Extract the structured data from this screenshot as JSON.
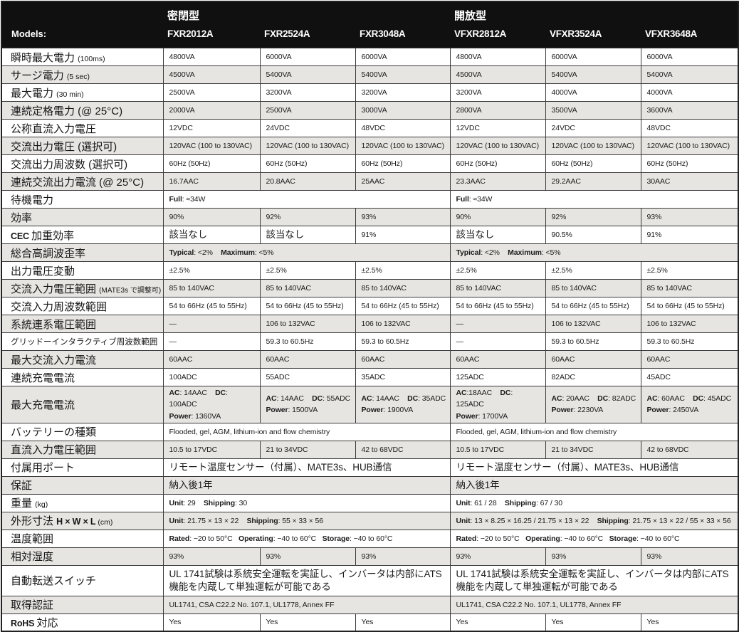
{
  "table": {
    "models_label": "Models:",
    "group_headers": [
      "密閉型",
      "開放型"
    ],
    "models": [
      "FXR2012A",
      "FXR2524A",
      "FXR3048A",
      "VFXR2812A",
      "VFXR3524A",
      "VFXR3648A"
    ],
    "rows": [
      {
        "label": [
          [
            "jp",
            "瞬時最大電力 "
          ],
          [
            "lt",
            "(100ms)"
          ]
        ],
        "cells": [
          "4800VA",
          "6000VA",
          "6000VA",
          "4800VA",
          "6000VA",
          "6000VA"
        ]
      },
      {
        "label": [
          [
            "jp",
            "サージ電力 "
          ],
          [
            "lt",
            "(5 sec)"
          ]
        ],
        "cells": [
          "4500VA",
          "5400VA",
          "5400VA",
          "4500VA",
          "5400VA",
          "5400VA"
        ]
      },
      {
        "label": [
          [
            "jp",
            "最大電力 "
          ],
          [
            "lt",
            "(30 min)"
          ]
        ],
        "cells": [
          "2500VA",
          "3200VA",
          "3200VA",
          "3200VA",
          "4000VA",
          "4000VA"
        ]
      },
      {
        "label": [
          [
            "jp",
            "連続定格電力 (@ 25°C)"
          ]
        ],
        "cells": [
          "2000VA",
          "2500VA",
          "3000VA",
          "2800VA",
          "3500VA",
          "3600VA"
        ]
      },
      {
        "label": [
          [
            "jp",
            "公称直流入力電圧"
          ]
        ],
        "cells": [
          "12VDC",
          "24VDC",
          "48VDC",
          "12VDC",
          "24VDC",
          "48VDC"
        ]
      },
      {
        "label": [
          [
            "jp",
            "交流出力電圧 (選択可)"
          ]
        ],
        "cells": [
          "120VAC (100 to 130VAC)",
          "120VAC (100 to 130VAC)",
          "120VAC (100 to 130VAC)",
          "120VAC (100 to 130VAC)",
          "120VAC (100 to 130VAC)",
          "120VAC (100 to 130VAC)"
        ]
      },
      {
        "label": [
          [
            "jp",
            "交流出力周波数 (選択可)"
          ]
        ],
        "cells": [
          "60Hz (50Hz)",
          "60Hz (50Hz)",
          "60Hz (50Hz)",
          "60Hz (50Hz)",
          "60Hz (50Hz)",
          "60Hz (50Hz)"
        ]
      },
      {
        "label": [
          [
            "jp",
            "連続交流出力電流 (@ 25°C)"
          ]
        ],
        "cells": [
          "16.7AAC",
          "20.8AAC",
          "25AAC",
          "23.3AAC",
          "29.2AAC",
          "30AAC"
        ]
      },
      {
        "label": [
          [
            "jp",
            "待機電力"
          ]
        ],
        "groups": [
          "**Full**: ≈34W",
          "**Full**: ≈34W"
        ]
      },
      {
        "label": [
          [
            "jp",
            "効率"
          ]
        ],
        "cells": [
          "90%",
          "92%",
          "93%",
          "90%",
          "92%",
          "93%"
        ]
      },
      {
        "label": [
          [
            "ltb",
            "CEC "
          ],
          [
            "jp",
            "加重効率"
          ]
        ],
        "cells": [
          "該当なし",
          "該当なし",
          "91%",
          "該当なし",
          "90.5%",
          "91%"
        ]
      },
      {
        "label": [
          [
            "jp",
            "総合高調波歪率"
          ]
        ],
        "groups": [
          "**Typical**: <2%    **Maximum**: <5%",
          "**Typical**: <2%    **Maximum**: <5%"
        ]
      },
      {
        "label": [
          [
            "jp",
            "出力電圧変動"
          ]
        ],
        "cells": [
          "±2.5%",
          "±2.5%",
          "±2.5%",
          "±2.5%",
          "±2.5%",
          "±2.5%"
        ]
      },
      {
        "label": [
          [
            "jp",
            "交流入力電圧範囲 "
          ],
          [
            "sm",
            "(MATE3s で調整可)"
          ]
        ],
        "cells": [
          "85 to 140VAC",
          "85 to 140VAC",
          "85 to 140VAC",
          "85 to 140VAC",
          "85 to 140VAC",
          "85 to 140VAC"
        ]
      },
      {
        "label": [
          [
            "jp",
            "交流入力周波数範囲"
          ]
        ],
        "cells": [
          "54 to 66Hz (45 to 55Hz)",
          "54 to 66Hz (45 to 55Hz)",
          "54 to 66Hz (45 to 55Hz)",
          "54 to 66Hz (45 to 55Hz)",
          "54 to 66Hz (45 to 55Hz)",
          "54 to 66Hz (45 to 55Hz)"
        ]
      },
      {
        "label": [
          [
            "jp",
            "系統連系電圧範囲"
          ]
        ],
        "cells": [
          "—",
          "106 to 132VAC",
          "106 to 132VAC",
          "—",
          "106 to 132VAC",
          "106 to 132VAC"
        ]
      },
      {
        "label": [
          [
            "jp",
            "グリッドーインタラクティブ周波数範囲"
          ]
        ],
        "small_label": true,
        "cells": [
          "—",
          "59.3 to 60.5Hz",
          "59.3 to 60.5Hz",
          "—",
          "59.3 to 60.5Hz",
          "59.3 to 60.5Hz"
        ]
      },
      {
        "label": [
          [
            "jp",
            "最大交流入力電流"
          ]
        ],
        "cells": [
          "60AAC",
          "60AAC",
          "60AAC",
          "60AAC",
          "60AAC",
          "60AAC"
        ]
      },
      {
        "label": [
          [
            "jp",
            "連続充電電流"
          ]
        ],
        "cells": [
          "100ADC",
          "55ADC",
          "35ADC",
          "125ADC",
          "82ADC",
          "45ADC"
        ]
      },
      {
        "label": [
          [
            "jp",
            "最大充電電流"
          ]
        ],
        "tall": true,
        "cells": [
          "**AC**: 14AAC    **DC**: 100ADC\n**Power**: 1360VA",
          "**AC**: 14AAC    **DC**: 55ADC\n**Power**: 1500VA",
          "**AC**: 14AAC    **DC**: 35ADC\n**Power**: 1900VA",
          "**AC**:18AAC    **DC**: 125ADC\n**Power**: 1700VA",
          "**AC**: 20AAC    **DC**: 82ADC\n**Power**: 2230VA",
          "**AC**: 60AAC    **DC**: 45ADC\n**Power**: 2450VA"
        ]
      },
      {
        "label": [
          [
            "jp",
            "バッテリーの種類"
          ]
        ],
        "groups": [
          "Flooded, gel, AGM, lithium-ion and flow chemistry",
          "Flooded, gel, AGM, lithium-ion and flow chemistry"
        ]
      },
      {
        "label": [
          [
            "jp",
            "直流入力電圧範囲"
          ]
        ],
        "cells": [
          "10.5 to 17VDC",
          "21 to 34VDC",
          "42 to 68VDC",
          "10.5 to 17VDC",
          "21 to 34VDC",
          "42 to 68VDC"
        ]
      },
      {
        "label": [
          [
            "jp",
            "付属用ポート"
          ]
        ],
        "groups": [
          "リモート温度センサー（付属）、MATE3s、HUB通信",
          "リモート温度センサー（付属）、MATE3s、HUB通信"
        ]
      },
      {
        "label": [
          [
            "jp",
            "保証"
          ]
        ],
        "groups": [
          "納入後1年",
          "納入後1年"
        ]
      },
      {
        "label": [
          [
            "jp",
            "重量 "
          ],
          [
            "lt",
            "(kg)"
          ]
        ],
        "groups": [
          "**Unit**: 29    **Shipping**: 30",
          "**Unit**: 61 / 28    **Shipping**: 67 / 30"
        ]
      },
      {
        "label": [
          [
            "jp",
            "外形寸法 "
          ],
          [
            "ltb",
            "H × W × L "
          ],
          [
            "lt",
            "(cm)"
          ]
        ],
        "groups": [
          "**Unit**: 21.75 × 13 × 22    **Shipping**: 55 × 33 × 56",
          "**Unit**: 13 × 8.25 × 16.25 / 21.75 × 13 × 22    **Shipping**: 21.75 × 13 × 22 / 55 × 33 × 56"
        ]
      },
      {
        "label": [
          [
            "jp",
            "温度範囲"
          ]
        ],
        "groups": [
          "**Rated**: −20 to 50°C   **Operating**: −40 to 60°C   **Storage**: −40 to 60°C",
          "**Rated**: −20 to 50°C   **Operating**: −40 to 60°C   **Storage**: −40 to 60°C"
        ]
      },
      {
        "label": [
          [
            "jp",
            "相対湿度"
          ]
        ],
        "cells": [
          "93%",
          "93%",
          "93%",
          "93%",
          "93%",
          "93%"
        ]
      },
      {
        "label": [
          [
            "jp",
            "自動転送スイッチ"
          ]
        ],
        "tall": true,
        "groups": [
          "UL 1741試験は系統安全運転を実証し、インバータは内部にATS機能を内蔵して単独運転が可能である",
          "UL 1741試験は系統安全運転を実証し、インバータは内部にATS機能を内蔵して単独運転が可能である"
        ]
      },
      {
        "label": [
          [
            "jp",
            "取得認証"
          ]
        ],
        "groups": [
          "UL1741, CSA C22.2 No. 107.1, UL1778, Annex FF",
          "UL1741, CSA C22.2 No. 107.1, UL1778, Annex FF"
        ]
      },
      {
        "label": [
          [
            "ltb",
            "RoHS "
          ],
          [
            "jp",
            "対応"
          ]
        ],
        "cells": [
          "Yes",
          "Yes",
          "Yes",
          "Yes",
          "Yes",
          "Yes"
        ]
      }
    ]
  },
  "colors": {
    "header_bg": "#101010",
    "header_text": "#ffffff",
    "stripe_gray": "#e6e5e2",
    "grid_border": "#3a3a3a",
    "text": "#1b1b1b"
  }
}
